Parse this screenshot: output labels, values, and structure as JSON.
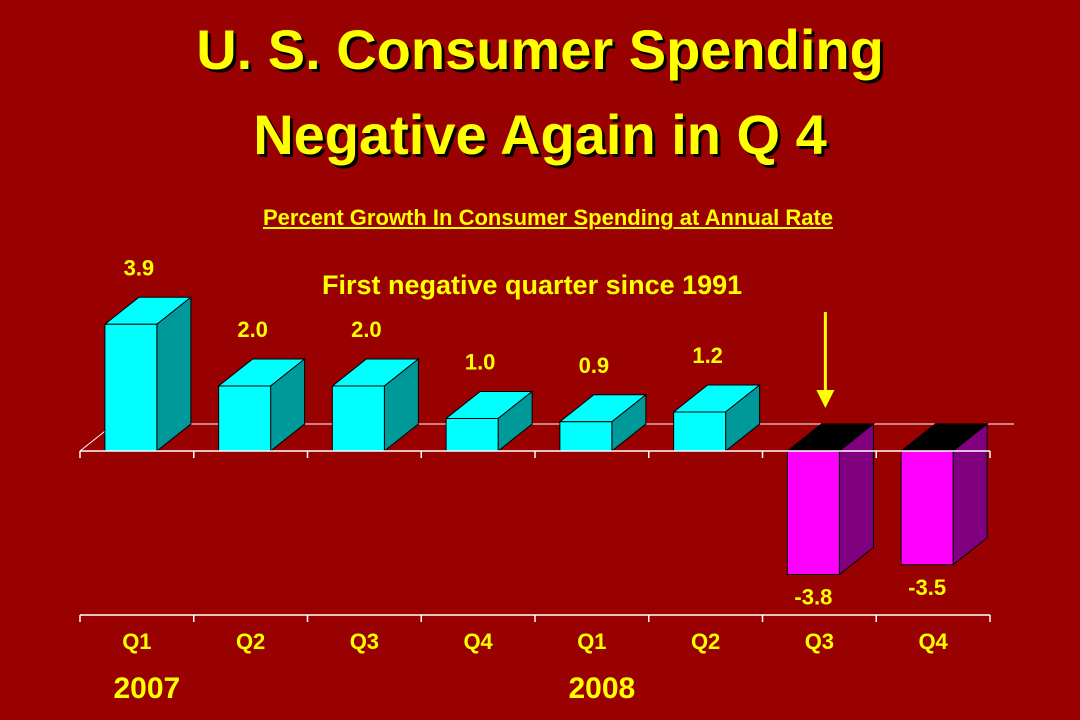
{
  "title_line1": "U. S. Consumer Spending",
  "title_line2": "Negative Again in Q 4",
  "subtitle": "Percent Growth In Consumer Spending at Annual Rate",
  "annotation": "First negative quarter since 1991",
  "colors": {
    "background": "#990000",
    "text": "#ffff00",
    "positive_front": "#00ffff",
    "positive_side": "#009999",
    "negative_front": "#ff00ff",
    "negative_side": "#800080",
    "negative_top": "#000000",
    "axis": "#ffffff",
    "label": "#ffff00"
  },
  "chart_data": {
    "type": "bar",
    "title": "U. S. Consumer Spending Negative Again in Q 4",
    "subtitle": "Percent Growth In Consumer Spending at Annual Rate",
    "categories": [
      "Q1",
      "Q2",
      "Q3",
      "Q4",
      "Q1",
      "Q2",
      "Q3",
      "Q4"
    ],
    "values": [
      3.9,
      2.0,
      2.0,
      1.0,
      0.9,
      1.2,
      -3.8,
      -3.5
    ],
    "value_labels": [
      "3.9",
      "2.0",
      "2.0",
      "1.0",
      "0.9",
      "1.2",
      "-3.8",
      "-3.5"
    ],
    "years": [
      {
        "label": "2007",
        "category_index": 0
      },
      {
        "label": "2008",
        "category_index": 4
      }
    ],
    "annotation": {
      "text": "First negative quarter since 1991",
      "points_to_index": 6
    },
    "xlabel": "",
    "ylabel": "",
    "ylim": [
      -5.3,
      4.7
    ],
    "grid": false,
    "legend": "none"
  }
}
